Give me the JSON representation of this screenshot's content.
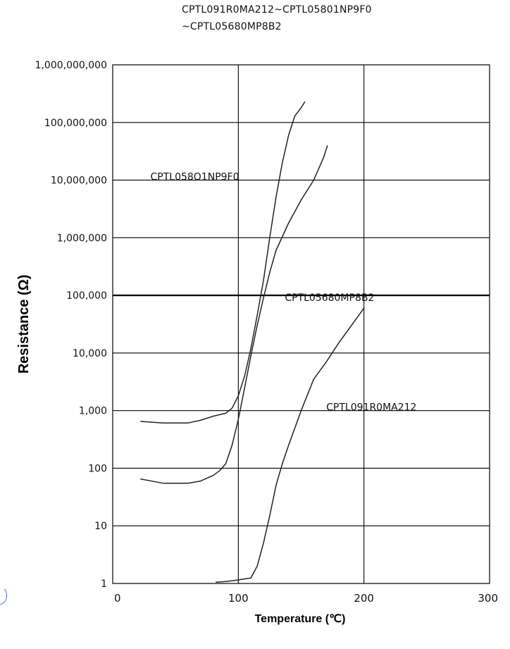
{
  "title_lines": [
    "CPTL091R0MA212~CPTL05801NP9F0",
    "~CPTL05680MP8B2"
  ],
  "chart_data": {
    "type": "line",
    "xlabel": "Temperature (℃)",
    "ylabel": "Resistance (Ω)",
    "xlim": [
      0,
      300
    ],
    "ylim": [
      1,
      1000000000
    ],
    "yscale": "log",
    "grid": true,
    "x_ticks": [
      0,
      100,
      200,
      300
    ],
    "x_tick_labels": [
      "0",
      "100",
      "200",
      "300"
    ],
    "y_ticks": [
      1,
      10,
      100,
      1000,
      10000,
      100000,
      1000000,
      10000000,
      100000000,
      1000000000
    ],
    "y_tick_labels": [
      "1",
      "10",
      "100",
      "1,000",
      "10,000",
      "100,000",
      "1,000,000",
      "10,000,000",
      "100,000,000",
      "1,000,000,000"
    ],
    "series": [
      {
        "name": "CPTL058O1NP9F0",
        "label_at": [
          30,
          10000000
        ],
        "x": [
          22,
          40,
          60,
          70,
          80,
          90,
          95,
          100,
          105,
          110,
          115,
          120,
          125,
          130,
          135,
          140,
          145,
          150,
          153
        ],
        "y": [
          650,
          610,
          610,
          680,
          800,
          900,
          1100,
          1800,
          4000,
          12000,
          45000,
          180000,
          1000000,
          5000000,
          20000000,
          60000000,
          130000000,
          180000000,
          230000000
        ]
      },
      {
        "name": "CPTL05680MP8B2",
        "label_at": [
          137,
          80000
        ],
        "x": [
          22,
          40,
          60,
          70,
          80,
          85,
          90,
          95,
          100,
          105,
          110,
          115,
          120,
          125,
          130,
          140,
          150,
          160,
          168,
          171
        ],
        "y": [
          65,
          55,
          55,
          60,
          75,
          90,
          120,
          250,
          700,
          2500,
          9000,
          30000,
          90000,
          250000,
          600000,
          1800000,
          4500000,
          10000000,
          25000000,
          40000000
        ]
      },
      {
        "name": "CPTL091R0MA212",
        "label_at": [
          170,
          1000
        ],
        "x": [
          82,
          90,
          100,
          110,
          115,
          120,
          125,
          130,
          135,
          140,
          150,
          160,
          170,
          180,
          190,
          200
        ],
        "y": [
          1.05,
          1.08,
          1.15,
          1.25,
          2,
          5,
          15,
          50,
          120,
          250,
          1000,
          3500,
          7000,
          15000,
          30000,
          60000
        ]
      }
    ]
  },
  "colors": {
    "grid": "#000000",
    "line": "#222222",
    "text": "#111111"
  }
}
